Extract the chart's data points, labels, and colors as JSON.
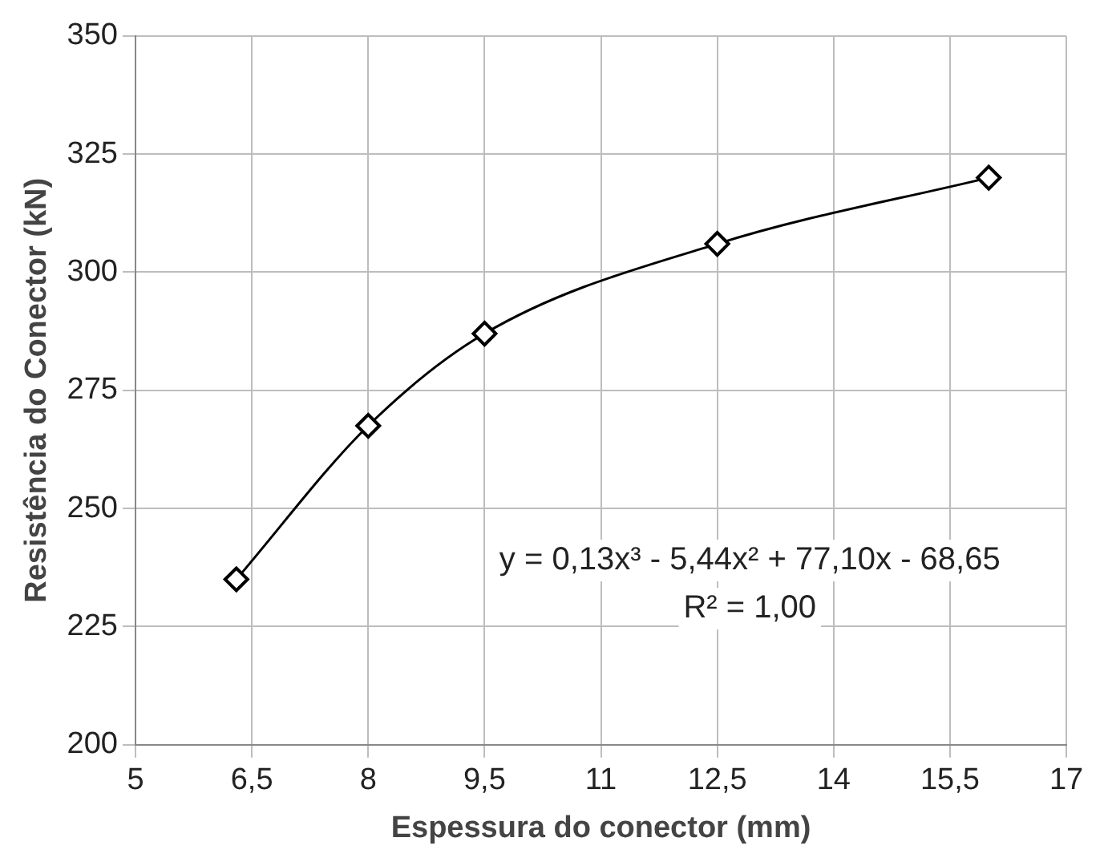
{
  "chart_data": {
    "type": "line",
    "xlabel": "Espessura do conector (mm)",
    "ylabel": "Resistência do Conector (kN)",
    "x": [
      6.3,
      8,
      9.5,
      12.5,
      16
    ],
    "series": [
      {
        "color": "#000000",
        "values": [
          235,
          267.5,
          287,
          306,
          320
        ]
      }
    ],
    "xlim": [
      5,
      17
    ],
    "xticks": [
      5,
      {
        "value": 6.5,
        "label": "6,5"
      },
      8,
      {
        "value": 9.5,
        "label": "9,5"
      },
      11,
      {
        "value": 12.5,
        "label": "12,5"
      },
      14,
      {
        "value": 15.5,
        "label": "15,5"
      },
      17
    ],
    "ylim": [
      200,
      350
    ],
    "yticks": [
      200,
      225,
      250,
      275,
      300,
      325,
      350
    ],
    "grid": true,
    "legend": false,
    "marker": "diamond",
    "line_style": "solid",
    "annotations": [
      "y = 0,13x³ - 5,44x² + 77,10x - 68,65",
      "R² = 1,00"
    ]
  }
}
